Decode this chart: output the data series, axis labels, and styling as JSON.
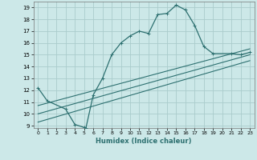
{
  "title": "",
  "xlabel": "Humidex (Indice chaleur)",
  "bg_color": "#cce8e8",
  "grid_color": "#aacccc",
  "line_color": "#2d7070",
  "xlim": [
    -0.5,
    23.5
  ],
  "ylim": [
    8.8,
    19.5
  ],
  "yticks": [
    9,
    10,
    11,
    12,
    13,
    14,
    15,
    16,
    17,
    18,
    19
  ],
  "xticks": [
    0,
    1,
    2,
    3,
    4,
    5,
    6,
    7,
    8,
    9,
    10,
    11,
    12,
    13,
    14,
    15,
    16,
    17,
    18,
    19,
    20,
    21,
    22,
    23
  ],
  "curve1_x": [
    0,
    1,
    3,
    4,
    5,
    5.2,
    6,
    7,
    8,
    9,
    10,
    11,
    12,
    13,
    14,
    15,
    16,
    17,
    18,
    19,
    21,
    22,
    23
  ],
  "curve1_y": [
    12.2,
    11.1,
    10.4,
    9.1,
    8.85,
    8.8,
    11.6,
    13.0,
    15.0,
    16.0,
    16.6,
    17.0,
    16.8,
    18.4,
    18.5,
    19.2,
    18.8,
    17.5,
    15.7,
    15.1,
    15.1,
    15.0,
    15.2
  ],
  "line2_x": [
    0,
    23
  ],
  "line2_y": [
    9.3,
    14.5
  ],
  "line3_x": [
    0,
    23
  ],
  "line3_y": [
    10.0,
    15.0
  ],
  "line4_x": [
    0,
    23
  ],
  "line4_y": [
    10.7,
    15.5
  ]
}
